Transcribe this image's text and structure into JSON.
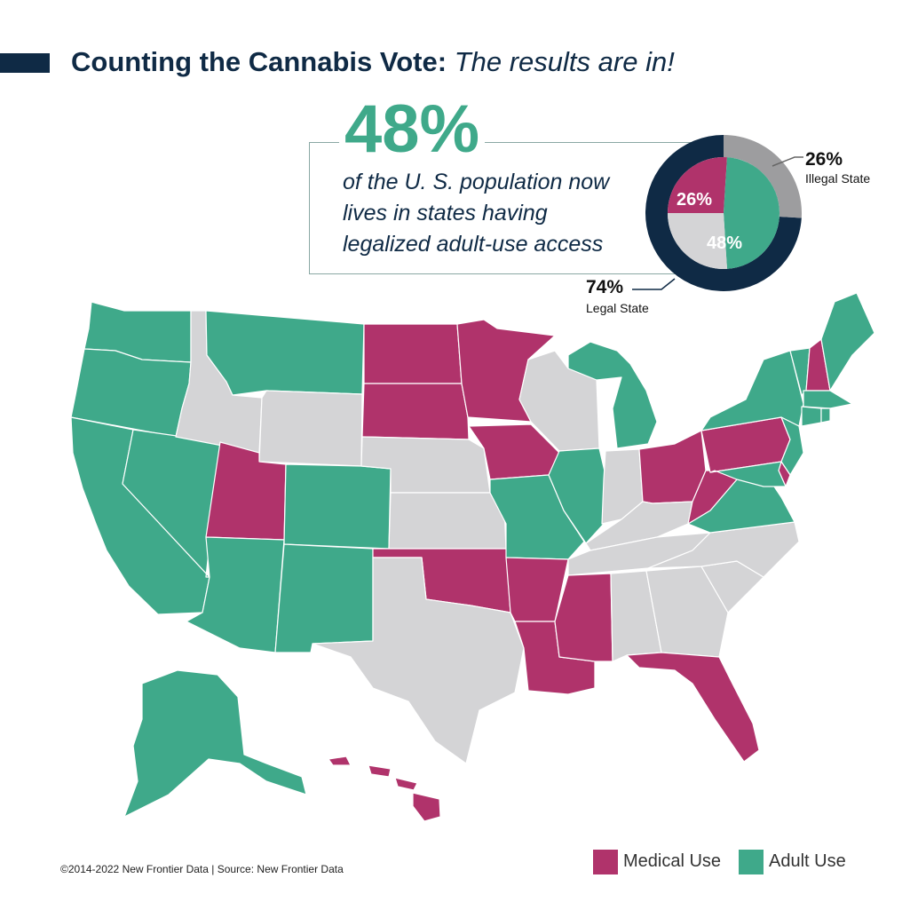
{
  "header": {
    "title_bold": "Counting the Cannabis Vote:",
    "title_italic": "The results are in!"
  },
  "callout": {
    "big_stat": "48%",
    "description": "of the U. S. population now lives in states having legalized adult-use access"
  },
  "donut": {
    "slices": [
      {
        "label": "26%",
        "value": 26,
        "color": "#b0336b"
      },
      {
        "label": "48%",
        "value": 48,
        "color": "#3fa98a"
      },
      {
        "label": "",
        "value": 26,
        "color": "#d4d4d6"
      }
    ],
    "outer_ring": [
      {
        "value": 74,
        "color": "#0f2a45"
      },
      {
        "value": 26,
        "color": "#9d9d9f"
      }
    ],
    "illegal": {
      "pct": "26%",
      "label": "Illegal State"
    },
    "legal": {
      "pct": "74%",
      "label": "Legal State"
    }
  },
  "colors": {
    "medical": "#b0336b",
    "adult": "#3fa98a",
    "illegal": "#d4d4d6",
    "navy": "#0f2a45"
  },
  "legend": {
    "medical": "Medical Use",
    "adult": "Adult Use"
  },
  "map": {
    "states": [
      {
        "abbr": "WA",
        "status": "adult"
      },
      {
        "abbr": "OR",
        "status": "adult"
      },
      {
        "abbr": "CA",
        "status": "adult"
      },
      {
        "abbr": "NV",
        "status": "adult"
      },
      {
        "abbr": "ID",
        "status": "illegal"
      },
      {
        "abbr": "MT",
        "status": "adult"
      },
      {
        "abbr": "WY",
        "status": "illegal"
      },
      {
        "abbr": "UT",
        "status": "medical"
      },
      {
        "abbr": "AZ",
        "status": "adult"
      },
      {
        "abbr": "CO",
        "status": "adult"
      },
      {
        "abbr": "NM",
        "status": "adult"
      },
      {
        "abbr": "ND",
        "status": "medical"
      },
      {
        "abbr": "SD",
        "status": "medical"
      },
      {
        "abbr": "NE",
        "status": "illegal"
      },
      {
        "abbr": "KS",
        "status": "illegal"
      },
      {
        "abbr": "OK",
        "status": "medical"
      },
      {
        "abbr": "TX",
        "status": "illegal"
      },
      {
        "abbr": "MN",
        "status": "medical"
      },
      {
        "abbr": "IA",
        "status": "medical"
      },
      {
        "abbr": "MO",
        "status": "adult"
      },
      {
        "abbr": "AR",
        "status": "medical"
      },
      {
        "abbr": "LA",
        "status": "medical"
      },
      {
        "abbr": "WI",
        "status": "illegal"
      },
      {
        "abbr": "IL",
        "status": "adult"
      },
      {
        "abbr": "MI",
        "status": "adult"
      },
      {
        "abbr": "IN",
        "status": "illegal"
      },
      {
        "abbr": "OH",
        "status": "medical"
      },
      {
        "abbr": "KY",
        "status": "illegal"
      },
      {
        "abbr": "TN",
        "status": "illegal"
      },
      {
        "abbr": "MS",
        "status": "medical"
      },
      {
        "abbr": "AL",
        "status": "illegal"
      },
      {
        "abbr": "GA",
        "status": "illegal"
      },
      {
        "abbr": "FL",
        "status": "medical"
      },
      {
        "abbr": "SC",
        "status": "illegal"
      },
      {
        "abbr": "NC",
        "status": "illegal"
      },
      {
        "abbr": "VA",
        "status": "adult"
      },
      {
        "abbr": "WV",
        "status": "medical"
      },
      {
        "abbr": "PA",
        "status": "medical"
      },
      {
        "abbr": "NY",
        "status": "adult"
      },
      {
        "abbr": "VT",
        "status": "adult"
      },
      {
        "abbr": "NH",
        "status": "medical"
      },
      {
        "abbr": "ME",
        "status": "adult"
      },
      {
        "abbr": "MA",
        "status": "adult"
      },
      {
        "abbr": "CT",
        "status": "adult"
      },
      {
        "abbr": "RI",
        "status": "adult"
      },
      {
        "abbr": "NJ",
        "status": "adult"
      },
      {
        "abbr": "DE",
        "status": "medical"
      },
      {
        "abbr": "MD",
        "status": "adult"
      },
      {
        "abbr": "AK",
        "status": "adult"
      },
      {
        "abbr": "HI",
        "status": "medical"
      }
    ]
  },
  "footer": {
    "credit": "©2014-2022  New Frontier Data | Source: New Frontier Data"
  }
}
